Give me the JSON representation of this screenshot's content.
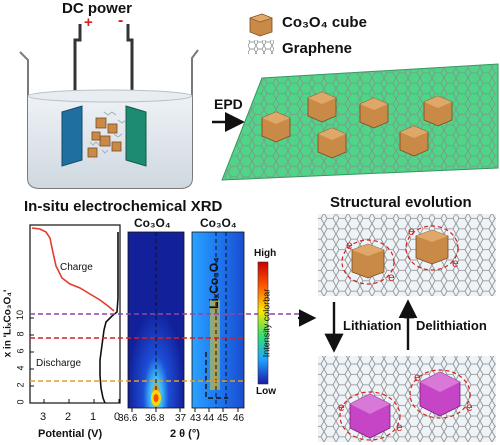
{
  "panel_epd": {
    "power_label": "DC power",
    "plus": "+",
    "minus": "-",
    "arrow_label": "EPD"
  },
  "legend": {
    "cube_label": "Co₃O₄ cube",
    "graphene_label": "Graphene"
  },
  "xrd": {
    "title": "In-situ electrochemical XRD",
    "potential_xlabel": "Potential (V)",
    "potential_ticks": [
      "3",
      "2",
      "1",
      "0"
    ],
    "x_axis_label": "x in 'LiₓCo₃O₄'",
    "x_ticks": [
      "0",
      "2",
      "4",
      "6",
      "8",
      "10"
    ],
    "charge_label": "Charge",
    "discharge_label": "Discharge",
    "map1_title": "Co₃O₄",
    "map2_title": "Co₃O₄",
    "map1_ticks": [
      "36.6",
      "36.8",
      "37"
    ],
    "map2_ticks": [
      "43",
      "44",
      "45",
      "46"
    ],
    "two_theta_label": "2 θ (°)",
    "phase_label": "LiₓCo₃O₄",
    "colorbar_high": "High",
    "colorbar_low": "Low",
    "colorbar_title": "Intensity colorbar",
    "colors": {
      "charge": "#e53b2c",
      "discharge": "#111111",
      "purple_line": "#8e44ad",
      "red_line": "#d62020",
      "orange_line": "#e39b2d"
    }
  },
  "evolution": {
    "title": "Structural evolution",
    "lithiation_label": "Lithiation",
    "delithiation_label": "Delithiation",
    "electron_label": "e"
  },
  "colors": {
    "graphene_sheet": "#4fd488",
    "cube": "#c98a48",
    "lithiated_cube": "#c545c6",
    "beaker_liquid": "#dde4ea",
    "electrode_left": "#1f6fa0",
    "electrode_right": "#1d8b72"
  }
}
